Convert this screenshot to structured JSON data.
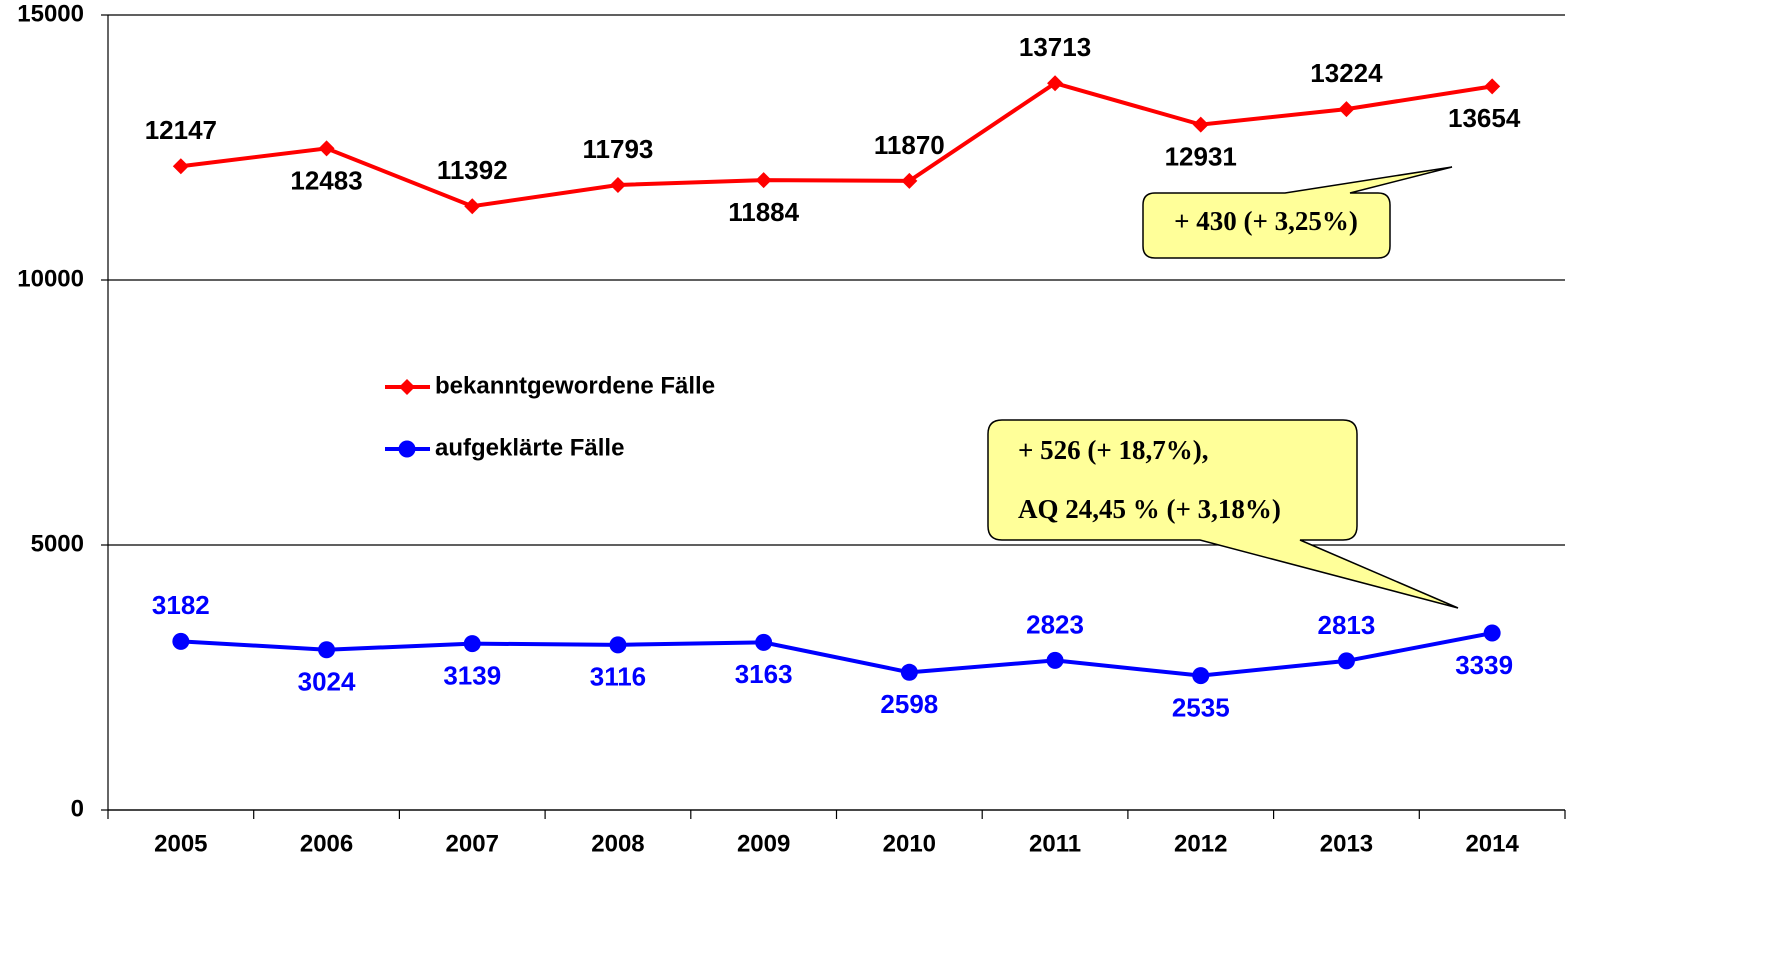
{
  "chart_data": {
    "type": "line",
    "categories": [
      "2005",
      "2006",
      "2007",
      "2008",
      "2009",
      "2010",
      "2011",
      "2012",
      "2013",
      "2014"
    ],
    "series": [
      {
        "name": "bekanntgewordene Fälle",
        "color": "#ff0000",
        "marker": "diamond",
        "values": [
          12147,
          12483,
          11392,
          11793,
          11884,
          11870,
          13713,
          12931,
          13224,
          13654
        ]
      },
      {
        "name": "aufgeklärte Fälle",
        "color": "#0000ff",
        "marker": "circle",
        "values": [
          3182,
          3024,
          3139,
          3116,
          3163,
          2598,
          2823,
          2535,
          2813,
          3339
        ]
      }
    ],
    "ylim": [
      0,
      15000
    ],
    "yticks": [
      0,
      5000,
      10000,
      15000
    ],
    "grid": true,
    "annotations": [
      [
        "+ 430 (+ 3,25%)"
      ],
      [
        "+ 526 (+ 18,7%),",
        "AQ 24,45 % (+ 3,18%)"
      ]
    ]
  }
}
